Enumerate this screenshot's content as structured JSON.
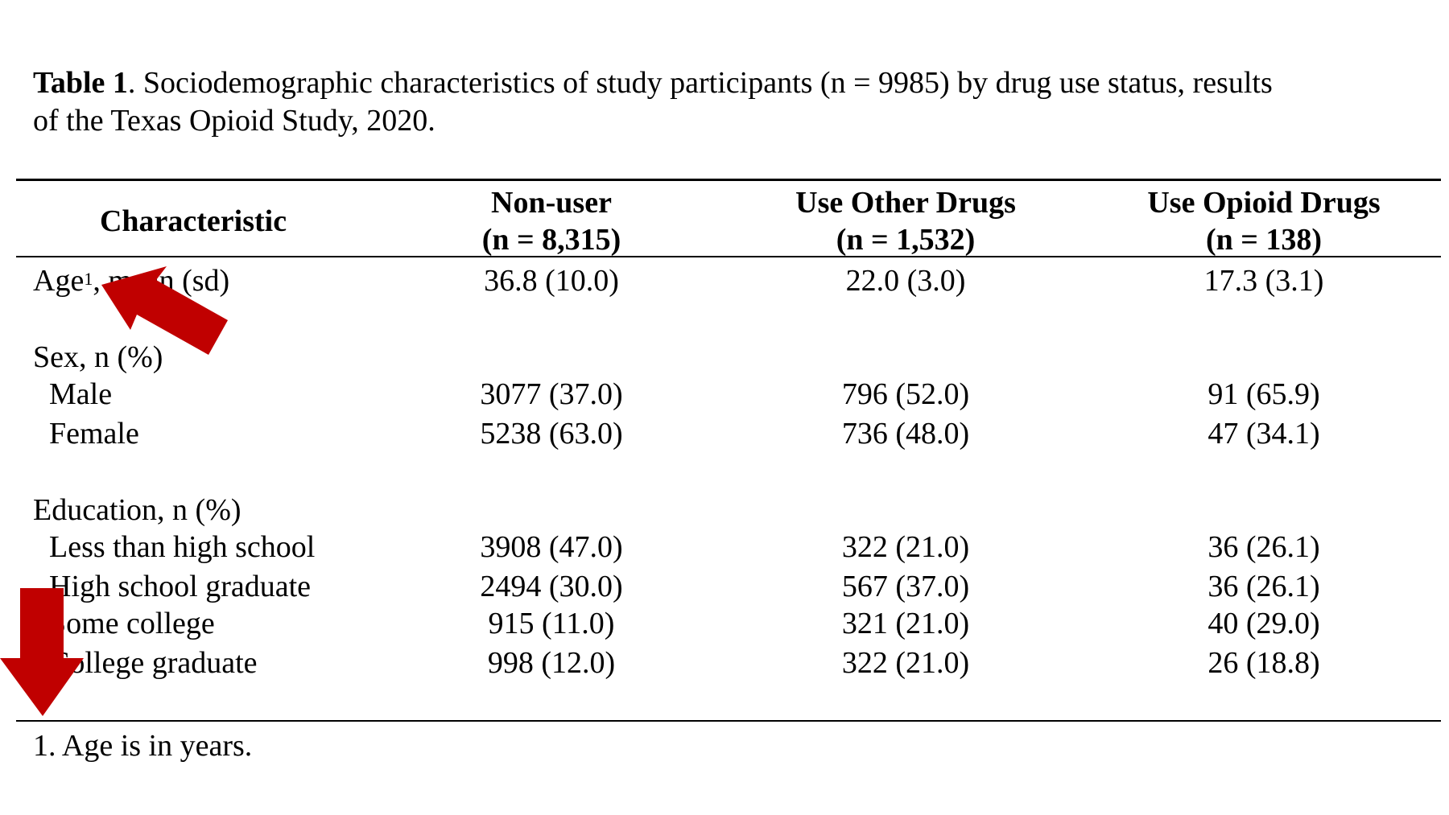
{
  "caption": {
    "label": "Table 1",
    "text": ". Sociodemographic characteristics of study participants (n = 9985) by drug use status, results\nof the Texas Opioid Study, 2020."
  },
  "columns": [
    {
      "name": "Characteristic",
      "n": ""
    },
    {
      "name": "Non-user",
      "n": "(n = 8,315)"
    },
    {
      "name": "Use Other Drugs",
      "n": "(n = 1,532)"
    },
    {
      "name": "Use Opioid Drugs",
      "n": "(n = 138)"
    }
  ],
  "rows": {
    "age": {
      "label": "Age",
      "sup": "1",
      "suffix": ", mean (sd)",
      "values": [
        "36.8 (10.0)",
        "22.0 (3.0)",
        "17.3 (3.1)"
      ]
    },
    "sex_heading": "Sex, n (%)",
    "male": {
      "label": "Male",
      "values": [
        "3077 (37.0)",
        "796 (52.0)",
        "91 (65.9)"
      ]
    },
    "female": {
      "label": "Female",
      "values": [
        "5238 (63.0)",
        "736 (48.0)",
        "47 (34.1)"
      ]
    },
    "education_heading": "Education, n (%)",
    "less_hs": {
      "label": "Less than high school",
      "values": [
        "3908 (47.0)",
        "322 (21.0)",
        "36 (26.1)"
      ]
    },
    "hs_grad": {
      "label": "High school graduate",
      "values": [
        "2494 (30.0)",
        "567 (37.0)",
        "36 (26.1)"
      ]
    },
    "some_college": {
      "label": "Some college",
      "values": [
        "915 (11.0)",
        "321 (21.0)",
        "40 (29.0)"
      ]
    },
    "college_grad": {
      "label": "College graduate",
      "values": [
        "998 (12.0)",
        "322 (21.0)",
        "26 (18.8)"
      ]
    }
  },
  "footnote": "1. Age is in years.",
  "annotations": {
    "arrow_color": "#c00000",
    "arrows": [
      "diagonal-arrow-icon",
      "down-arrow-icon"
    ]
  }
}
